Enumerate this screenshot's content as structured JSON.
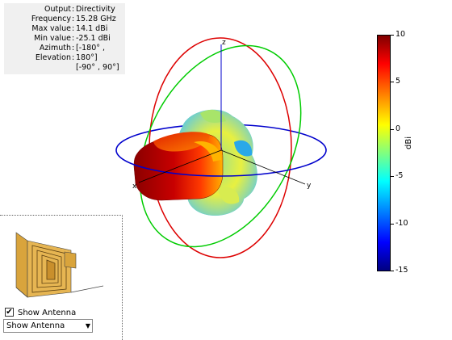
{
  "info": [
    {
      "key": "Output",
      "value": "Directivity"
    },
    {
      "key": "Frequency",
      "value": "15.28 GHz"
    },
    {
      "key": "Max value",
      "value": "14.1 dBi"
    },
    {
      "key": "Min value",
      "value": "-25.1 dBi"
    },
    {
      "key": "Azimuth",
      "value": "[-180° ,"
    },
    {
      "key": "Elevation",
      "value": "180°]"
    },
    {
      "key": "",
      "value": "[-90° , 90°]"
    }
  ],
  "separator": ":",
  "axes": {
    "x": "x",
    "y": "y",
    "z": "z"
  },
  "colorbar": {
    "title": "dBi",
    "ticks": [
      "10",
      "5",
      "0",
      "-5",
      "-10",
      "-15"
    ],
    "max": 10,
    "min": -15
  },
  "antenna_panel": {
    "checkbox_label": "Show Antenna",
    "checkbox_checked": true,
    "checkmark": "✔",
    "dropdown_value": "Show Antenna",
    "dropdown_arrow": "▼"
  },
  "colors": {
    "ring_blue": "#0000cc",
    "ring_red": "#cc0000",
    "ring_green": "#00cc00",
    "pattern_main": "#a00000"
  },
  "icons": {
    "antenna": "horn-antenna-icon",
    "dropdown": "chevron-down-icon",
    "checkbox": "checkmark-icon"
  }
}
